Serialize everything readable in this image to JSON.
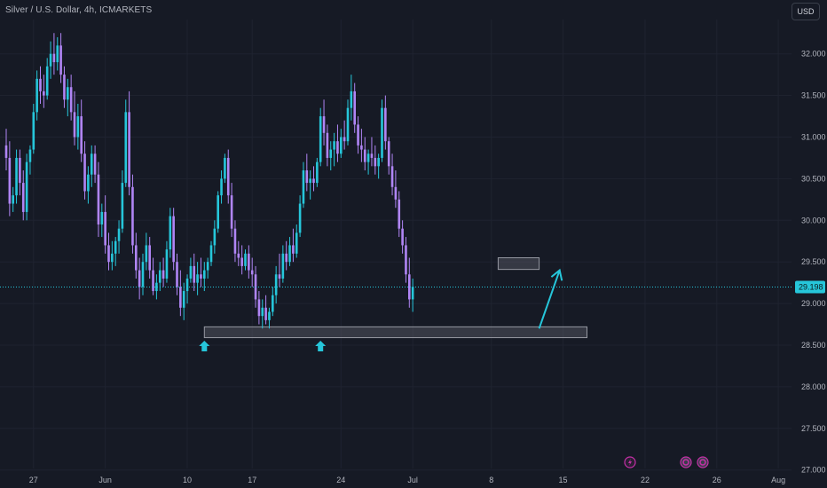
{
  "header": {
    "title": "Silver / U.S. Dollar, 4h, ICMARKETS",
    "currency_button": "USD"
  },
  "colors": {
    "background": "#161a25",
    "grid": "#1f2330",
    "bull": "#26c6da",
    "bear": "#b085f5",
    "last_price_line": "#26c6da",
    "zone_fill": "#5d606b",
    "zone_stroke": "#9598a1",
    "arrow": "#26c6da",
    "event_icon": "#c62fa8"
  },
  "icons": {
    "support_marker": "up-arrow-icon",
    "event_markers": [
      "lightning-icon",
      "earnings-icon",
      "earnings-icon"
    ]
  },
  "chart_data": {
    "type": "candlestick",
    "symbol": "Silver / U.S. Dollar",
    "interval": "4h",
    "source": "ICMARKETS",
    "currency": "USD",
    "y_ticks": [
      27.0,
      27.5,
      28.0,
      28.5,
      29.0,
      29.5,
      30.0,
      30.5,
      31.0,
      31.5,
      32.0
    ],
    "y_tick_labels": [
      "27.000",
      "27.500",
      "28.000",
      "28.500",
      "29.000",
      "29.500",
      "30.000",
      "30.500",
      "31.000",
      "31.500",
      "32.000"
    ],
    "ylim": [
      26.95,
      32.65
    ],
    "x_ticks": [
      "27",
      "Jun",
      "10",
      "17",
      "24",
      "Jul",
      "8",
      "15",
      "22",
      "26",
      "Aug"
    ],
    "last_price": 29.198,
    "last_price_label": "29.198",
    "ohlc": [
      [
        30.9,
        31.1,
        30.6,
        30.75
      ],
      [
        30.75,
        30.95,
        30.05,
        30.2
      ],
      [
        30.2,
        30.4,
        30.1,
        30.3
      ],
      [
        30.3,
        30.85,
        30.2,
        30.75
      ],
      [
        30.75,
        30.85,
        30.3,
        30.45
      ],
      [
        30.45,
        30.6,
        30.0,
        30.1
      ],
      [
        30.1,
        30.8,
        30.0,
        30.7
      ],
      [
        30.7,
        30.9,
        30.55,
        30.85
      ],
      [
        30.85,
        31.4,
        30.8,
        31.3
      ],
      [
        31.3,
        31.8,
        31.2,
        31.7
      ],
      [
        31.7,
        31.85,
        31.4,
        31.55
      ],
      [
        31.55,
        31.75,
        31.35,
        31.5
      ],
      [
        31.5,
        31.95,
        31.45,
        31.85
      ],
      [
        31.85,
        32.15,
        31.7,
        32.0
      ],
      [
        32.0,
        32.25,
        31.75,
        31.9
      ],
      [
        31.9,
        32.2,
        31.8,
        32.1
      ],
      [
        32.1,
        32.25,
        31.65,
        31.75
      ],
      [
        31.75,
        31.85,
        31.35,
        31.45
      ],
      [
        31.45,
        31.7,
        31.25,
        31.6
      ],
      [
        31.6,
        31.75,
        31.2,
        31.3
      ],
      [
        31.3,
        31.55,
        30.9,
        31.0
      ],
      [
        31.0,
        31.4,
        30.85,
        31.25
      ],
      [
        31.25,
        31.45,
        30.7,
        30.8
      ],
      [
        30.8,
        30.95,
        30.25,
        30.35
      ],
      [
        30.35,
        30.65,
        30.2,
        30.55
      ],
      [
        30.55,
        30.9,
        30.4,
        30.8
      ],
      [
        30.8,
        30.9,
        30.45,
        30.55
      ],
      [
        30.55,
        30.7,
        29.8,
        29.95
      ],
      [
        29.95,
        30.2,
        29.8,
        30.1
      ],
      [
        30.1,
        30.3,
        29.6,
        29.7
      ],
      [
        29.7,
        29.85,
        29.4,
        29.5
      ],
      [
        29.5,
        29.75,
        29.4,
        29.6
      ],
      [
        29.6,
        29.8,
        29.45,
        29.75
      ],
      [
        29.75,
        30.0,
        29.6,
        29.9
      ],
      [
        29.9,
        30.6,
        29.85,
        30.45
      ],
      [
        30.45,
        31.45,
        30.4,
        31.3
      ],
      [
        31.3,
        31.55,
        30.3,
        30.4
      ],
      [
        30.4,
        30.55,
        29.6,
        29.7
      ],
      [
        29.7,
        29.85,
        29.3,
        29.4
      ],
      [
        29.4,
        29.55,
        29.05,
        29.2
      ],
      [
        29.2,
        29.6,
        29.1,
        29.5
      ],
      [
        29.5,
        29.85,
        29.4,
        29.7
      ],
      [
        29.7,
        29.8,
        29.3,
        29.4
      ],
      [
        29.4,
        29.55,
        29.1,
        29.15
      ],
      [
        29.15,
        29.35,
        29.05,
        29.25
      ],
      [
        29.25,
        29.5,
        29.15,
        29.4
      ],
      [
        29.4,
        29.55,
        29.2,
        29.3
      ],
      [
        29.3,
        29.75,
        29.25,
        29.65
      ],
      [
        29.65,
        30.15,
        29.55,
        30.05
      ],
      [
        30.05,
        30.15,
        29.4,
        29.5
      ],
      [
        29.5,
        29.6,
        29.1,
        29.2
      ],
      [
        29.2,
        29.4,
        28.85,
        28.95
      ],
      [
        28.95,
        29.25,
        28.8,
        29.15
      ],
      [
        29.15,
        29.35,
        29.0,
        29.3
      ],
      [
        29.3,
        29.55,
        29.25,
        29.45
      ],
      [
        29.45,
        29.6,
        29.15,
        29.25
      ],
      [
        29.25,
        29.5,
        29.1,
        29.35
      ],
      [
        29.35,
        29.55,
        29.2,
        29.3
      ],
      [
        29.3,
        29.5,
        29.15,
        29.4
      ],
      [
        29.4,
        29.55,
        29.3,
        29.5
      ],
      [
        29.5,
        29.75,
        29.45,
        29.7
      ],
      [
        29.7,
        30.0,
        29.6,
        29.9
      ],
      [
        29.9,
        30.35,
        29.85,
        30.3
      ],
      [
        30.3,
        30.6,
        30.2,
        30.5
      ],
      [
        30.5,
        30.8,
        30.45,
        30.75
      ],
      [
        30.75,
        30.85,
        30.2,
        30.3
      ],
      [
        30.3,
        30.45,
        29.8,
        29.9
      ],
      [
        29.9,
        30.0,
        29.5,
        29.6
      ],
      [
        29.6,
        29.75,
        29.45,
        29.55
      ],
      [
        29.55,
        29.7,
        29.35,
        29.45
      ],
      [
        29.45,
        29.65,
        29.4,
        29.6
      ],
      [
        29.6,
        29.7,
        29.3,
        29.4
      ],
      [
        29.4,
        29.55,
        29.2,
        29.35
      ],
      [
        29.35,
        29.45,
        28.95,
        29.05
      ],
      [
        29.05,
        29.15,
        28.75,
        28.85
      ],
      [
        28.85,
        29.05,
        28.7,
        28.95
      ],
      [
        28.95,
        29.1,
        28.75,
        28.8
      ],
      [
        28.8,
        28.95,
        28.7,
        28.9
      ],
      [
        28.9,
        29.2,
        28.85,
        29.1
      ],
      [
        29.1,
        29.45,
        29.0,
        29.35
      ],
      [
        29.35,
        29.6,
        29.2,
        29.3
      ],
      [
        29.3,
        29.7,
        29.25,
        29.6
      ],
      [
        29.6,
        29.75,
        29.4,
        29.5
      ],
      [
        29.5,
        29.8,
        29.45,
        29.7
      ],
      [
        29.7,
        29.9,
        29.5,
        29.6
      ],
      [
        29.6,
        29.95,
        29.55,
        29.85
      ],
      [
        29.85,
        30.3,
        29.8,
        30.2
      ],
      [
        30.2,
        30.7,
        30.15,
        30.6
      ],
      [
        30.6,
        30.8,
        30.35,
        30.45
      ],
      [
        30.45,
        30.6,
        30.25,
        30.5
      ],
      [
        30.5,
        30.65,
        30.35,
        30.45
      ],
      [
        30.45,
        30.75,
        30.4,
        30.7
      ],
      [
        30.7,
        31.35,
        30.65,
        31.25
      ],
      [
        31.25,
        31.45,
        30.9,
        31.05
      ],
      [
        31.05,
        31.15,
        30.65,
        30.75
      ],
      [
        30.75,
        30.95,
        30.6,
        30.85
      ],
      [
        30.85,
        31.05,
        30.65,
        30.95
      ],
      [
        30.95,
        31.15,
        30.7,
        30.8
      ],
      [
        30.8,
        31.1,
        30.75,
        31.0
      ],
      [
        31.0,
        31.2,
        30.85,
        30.95
      ],
      [
        30.95,
        31.45,
        30.9,
        31.35
      ],
      [
        31.35,
        31.75,
        31.2,
        31.55
      ],
      [
        31.55,
        31.65,
        31.05,
        31.15
      ],
      [
        31.15,
        31.25,
        30.8,
        30.9
      ],
      [
        30.9,
        31.1,
        30.7,
        30.85
      ],
      [
        30.85,
        31.0,
        30.6,
        30.7
      ],
      [
        30.7,
        30.85,
        30.55,
        30.8
      ],
      [
        30.8,
        31.0,
        30.65,
        30.75
      ],
      [
        30.75,
        30.9,
        30.55,
        30.65
      ],
      [
        30.65,
        30.8,
        30.5,
        30.75
      ],
      [
        30.75,
        31.45,
        30.7,
        31.35
      ],
      [
        31.35,
        31.5,
        30.85,
        30.95
      ],
      [
        30.95,
        31.0,
        30.55,
        30.65
      ],
      [
        30.65,
        30.8,
        30.3,
        30.4
      ],
      [
        30.4,
        30.6,
        30.15,
        30.25
      ],
      [
        30.25,
        30.35,
        29.8,
        29.9
      ],
      [
        29.9,
        30.0,
        29.6,
        29.7
      ],
      [
        29.7,
        29.8,
        29.25,
        29.35
      ],
      [
        29.35,
        29.55,
        28.95,
        29.05
      ],
      [
        29.05,
        29.3,
        28.9,
        29.2
      ]
    ],
    "annotations": [
      {
        "type": "rectangle",
        "label": "support-zone",
        "x_start_bar": 58,
        "x_end_bar": 170,
        "y_low": 28.59,
        "y_high": 28.72
      },
      {
        "type": "rectangle",
        "label": "target-zone",
        "x_start_bar": 144,
        "x_end_bar": 156,
        "y_low": 29.41,
        "y_high": 29.55
      },
      {
        "type": "arrow",
        "label": "projection-arrow",
        "from_bar": 156,
        "from_y": 28.7,
        "to_bar": 162,
        "to_y": 29.4
      },
      {
        "type": "marker",
        "label": "up-arrow-icon",
        "bar": 58
      },
      {
        "type": "marker",
        "label": "up-arrow-icon",
        "bar": 92
      }
    ]
  }
}
